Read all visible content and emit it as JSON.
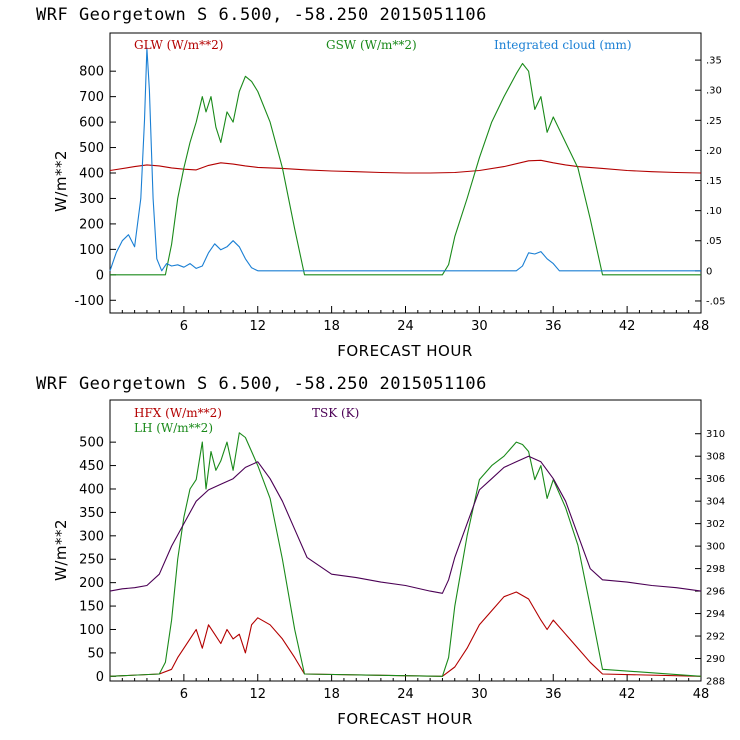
{
  "chart_data": [
    {
      "type": "line",
      "title": "WRF   Georgetown S   6.500, -58.250  2015051106",
      "xlabel": "FORECAST HOUR",
      "ylabel": "W/m**2",
      "xlim": [
        0,
        48
      ],
      "ylim": [
        -150,
        950
      ],
      "y2lim": [
        -0.07,
        0.395
      ],
      "x_ticks": [
        6,
        12,
        18,
        24,
        30,
        36,
        42,
        48
      ],
      "y_ticks": [
        -100,
        0,
        100,
        200,
        300,
        400,
        500,
        600,
        700,
        800
      ],
      "y2_tick_labels": [
        {
          "value": -0.05,
          "label": "-.05"
        },
        {
          "value": 0,
          "label": "0"
        },
        {
          "value": 0.05,
          "label": ".05"
        },
        {
          "value": 0.1,
          "label": ".10"
        },
        {
          "value": 0.15,
          "label": ".15"
        },
        {
          "value": 0.2,
          "label": ".20"
        },
        {
          "value": 0.25,
          "label": ".25"
        },
        {
          "value": 0.3,
          "label": ".30"
        },
        {
          "value": 0.35,
          "label": ".35"
        }
      ],
      "series": [
        {
          "name": "GLW (W/m**2)",
          "axis": "left",
          "color": "#b30000",
          "x": [
            0,
            2,
            3,
            4,
            5,
            6,
            7,
            8,
            9,
            10,
            11,
            12,
            14,
            16,
            18,
            20,
            22,
            24,
            26,
            28,
            30,
            32,
            34,
            35,
            36,
            37,
            38,
            40,
            42,
            44,
            46,
            48
          ],
          "y": [
            410,
            425,
            432,
            428,
            420,
            415,
            412,
            430,
            440,
            435,
            428,
            422,
            418,
            412,
            408,
            405,
            402,
            400,
            400,
            402,
            410,
            425,
            448,
            450,
            440,
            432,
            425,
            418,
            410,
            405,
            402,
            400
          ]
        },
        {
          "name": "GSW (W/m**2)",
          "axis": "left",
          "color": "#1a8a1a",
          "x": [
            0,
            4.5,
            5,
            5.5,
            6,
            6.5,
            7,
            7.5,
            7.8,
            8.2,
            8.6,
            9,
            9.5,
            10,
            10.5,
            11,
            11.5,
            12,
            13,
            14,
            15,
            15.8,
            27,
            27.5,
            28,
            29,
            30,
            31,
            32,
            33,
            33.5,
            34,
            34.5,
            35,
            35.5,
            36,
            37,
            38,
            39,
            40,
            48
          ],
          "y": [
            0,
            0,
            120,
            300,
            420,
            520,
            600,
            700,
            640,
            700,
            580,
            520,
            640,
            600,
            720,
            780,
            760,
            720,
            600,
            420,
            180,
            0,
            0,
            40,
            150,
            300,
            460,
            600,
            700,
            790,
            830,
            800,
            650,
            700,
            560,
            620,
            520,
            420,
            220,
            0,
            0
          ]
        },
        {
          "name": "Integrated cloud (mm)",
          "axis": "right",
          "color": "#1a7fd4",
          "x": [
            0,
            0.5,
            1,
            1.5,
            2,
            2.5,
            2.8,
            3,
            3.2,
            3.5,
            3.8,
            4.2,
            4.6,
            5,
            5.5,
            6,
            6.5,
            7,
            7.5,
            8,
            8.5,
            9,
            9.5,
            10,
            10.5,
            11,
            11.5,
            12,
            33,
            33.5,
            34,
            34.5,
            35,
            35.5,
            36,
            36.5,
            48
          ],
          "y": [
            0,
            0.03,
            0.05,
            0.06,
            0.04,
            0.12,
            0.25,
            0.37,
            0.3,
            0.12,
            0.02,
            0,
            0.012,
            0.008,
            0.01,
            0.006,
            0.012,
            0.004,
            0.008,
            0.03,
            0.045,
            0.035,
            0.04,
            0.05,
            0.04,
            0.02,
            0.005,
            0,
            0,
            0.008,
            0.03,
            0.028,
            0.032,
            0.02,
            0.012,
            0,
            0
          ]
        }
      ]
    },
    {
      "type": "line",
      "title": "WRF   Georgetown S   6.500, -58.250  2015051106",
      "xlabel": "FORECAST HOUR",
      "ylabel": "W/m**2",
      "xlim": [
        0,
        48
      ],
      "ylim": [
        -10,
        590
      ],
      "y2lim": [
        288,
        313
      ],
      "x_ticks": [
        6,
        12,
        18,
        24,
        30,
        36,
        42,
        48
      ],
      "y_ticks": [
        0,
        50,
        100,
        150,
        200,
        250,
        300,
        350,
        400,
        450,
        500
      ],
      "y2_ticks": [
        288,
        290,
        292,
        294,
        296,
        298,
        300,
        302,
        304,
        306,
        308,
        310
      ],
      "series": [
        {
          "name": "HFX (W/m**2)",
          "axis": "left",
          "color": "#b30000",
          "x": [
            0,
            4,
            5,
            5.5,
            6,
            6.5,
            7,
            7.5,
            8,
            8.5,
            9,
            9.5,
            10,
            10.5,
            11,
            11.5,
            12,
            13,
            14,
            15,
            15.8,
            27,
            28,
            29,
            30,
            31,
            32,
            33,
            34,
            35,
            35.5,
            36,
            37,
            38,
            39,
            40,
            48
          ],
          "y": [
            0,
            5,
            15,
            40,
            60,
            80,
            100,
            60,
            110,
            90,
            70,
            100,
            80,
            90,
            50,
            110,
            125,
            110,
            80,
            40,
            5,
            0,
            20,
            60,
            110,
            140,
            170,
            180,
            165,
            120,
            100,
            120,
            90,
            60,
            30,
            5,
            0
          ]
        },
        {
          "name": "LH  (W/m**2)",
          "axis": "left",
          "color": "#1a8a1a",
          "x": [
            0,
            4,
            4.5,
            5,
            5.5,
            6,
            6.5,
            7,
            7.5,
            7.8,
            8.2,
            8.6,
            9,
            9.5,
            10,
            10.5,
            11,
            11.5,
            12,
            13,
            14,
            15,
            15.8,
            27,
            27.5,
            28,
            29,
            30,
            31,
            32,
            33,
            33.5,
            34,
            34.5,
            35,
            35.5,
            36,
            37,
            38,
            39,
            40,
            48
          ],
          "y": [
            0,
            5,
            30,
            120,
            250,
            340,
            400,
            420,
            500,
            400,
            480,
            440,
            460,
            500,
            440,
            520,
            510,
            480,
            450,
            380,
            250,
            100,
            5,
            0,
            40,
            150,
            300,
            420,
            450,
            470,
            500,
            495,
            480,
            420,
            450,
            380,
            420,
            360,
            280,
            150,
            15,
            0
          ]
        },
        {
          "name": "TSK (K)",
          "axis": "right",
          "color": "#4b0055",
          "x": [
            0,
            1,
            2,
            3,
            4,
            5,
            6,
            7,
            8,
            9,
            10,
            11,
            12,
            13,
            14,
            15,
            16,
            18,
            20,
            22,
            24,
            26,
            27,
            27.5,
            28,
            29,
            30,
            31,
            32,
            33,
            34,
            35,
            36,
            37,
            38,
            39,
            40,
            42,
            44,
            46,
            48
          ],
          "y": [
            296,
            296.2,
            296.3,
            296.5,
            297.5,
            300,
            302,
            304,
            305,
            305.5,
            306,
            307,
            307.5,
            306,
            304,
            301.5,
            299,
            297.5,
            297.2,
            296.8,
            296.5,
            296,
            295.8,
            297,
            299,
            302,
            305,
            306,
            307,
            307.5,
            308,
            307.5,
            306,
            304,
            301,
            298,
            297,
            296.8,
            296.5,
            296.3,
            296
          ]
        }
      ]
    }
  ]
}
